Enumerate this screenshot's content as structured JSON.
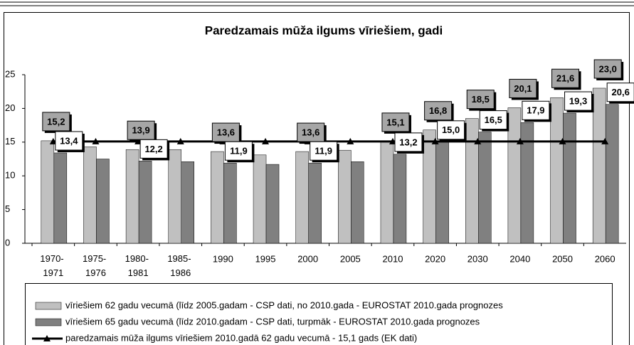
{
  "chart_data": {
    "type": "bar",
    "title": "Paredzamais mūža ilgums vīriešiem, gadi",
    "categories": [
      "1970-\n1971",
      "1975-\n1976",
      "1980-\n1981",
      "1985-\n1986",
      "1990",
      "1995",
      "2000",
      "2005",
      "2010",
      "2020",
      "2030",
      "2040",
      "2050",
      "2060"
    ],
    "series": [
      {
        "name": "vīriešiem 62 gadu vecumā (līdz 2005.gadam - CSP dati, no 2010.gada - EUROSTAT 2010.gada prognozes",
        "color": "#c0c0c0",
        "values": [
          15.2,
          14.3,
          13.9,
          13.9,
          13.6,
          13.1,
          13.6,
          13.8,
          15.1,
          16.8,
          18.5,
          20.1,
          21.6,
          23.0
        ],
        "value_labels": [
          "15,2",
          null,
          "13,9",
          null,
          "13,6",
          null,
          "13,6",
          null,
          "15,1",
          "16,8",
          "18,5",
          "20,1",
          "21,6",
          "23,0"
        ]
      },
      {
        "name": "vīriešiem 65 gadu vecumā (līdz 2010.gadam - CSP dati, turpmāk - EUROSTAT 2010.gada prognozes",
        "color": "#808080",
        "values": [
          13.4,
          12.5,
          12.2,
          12.1,
          11.9,
          11.7,
          11.9,
          12.1,
          13.2,
          15.0,
          16.5,
          17.9,
          19.3,
          20.6
        ],
        "value_labels": [
          "13,4",
          null,
          "12,2",
          null,
          "11,9",
          null,
          "11,9",
          null,
          "13,2",
          "15,0",
          "16,5",
          "17,9",
          "19,3",
          "20,6"
        ]
      },
      {
        "name": "paredzamais mūža ilgums vīriešiem 2010.gadā 62 gadu vecumā - 15,1 gads (EK dati)",
        "color": "#000000",
        "type": "line",
        "values": [
          15.1,
          15.1,
          15.1,
          15.1,
          15.1,
          15.1,
          15.1,
          15.1,
          15.1,
          15.1,
          15.1,
          15.1,
          15.1,
          15.1
        ]
      }
    ],
    "ylim": [
      0,
      25
    ],
    "yticks": [
      0,
      5,
      10,
      15,
      20,
      25
    ]
  }
}
